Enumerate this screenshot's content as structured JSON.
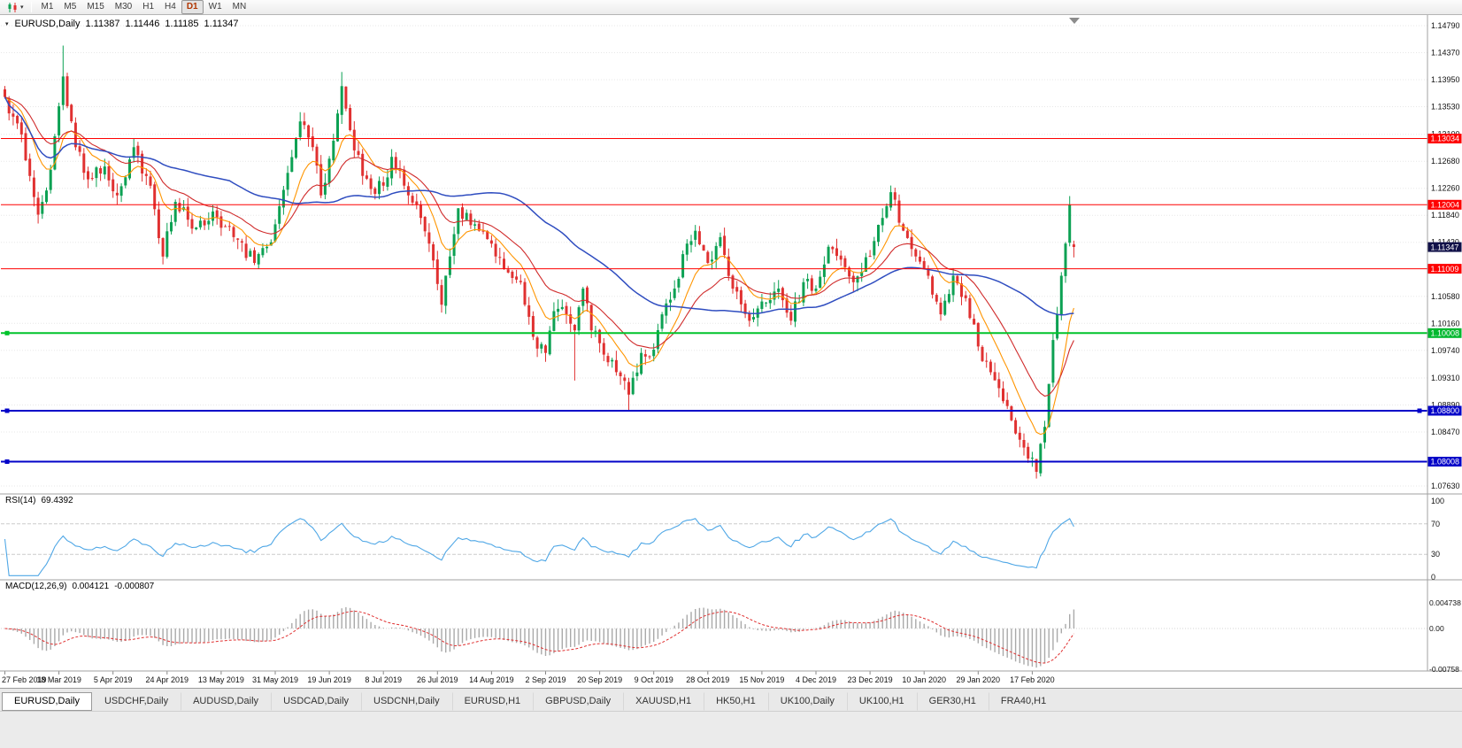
{
  "toolbar": {
    "timeframes": [
      "M1",
      "M5",
      "M15",
      "M30",
      "H1",
      "H4",
      "D1",
      "W1",
      "MN"
    ],
    "active_timeframe": "D1",
    "icons": [
      "candlestick-chart-icon",
      "dropdown-arrow-icon"
    ]
  },
  "chart": {
    "symbol_label": "EURUSD,Daily",
    "open": "1.11387",
    "high": "1.11446",
    "low": "1.11185",
    "close": "1.11347"
  },
  "price_axis": {
    "top_value": 1.1479,
    "bottom_value": 1.0763,
    "labels": [
      "1.14790",
      "1.14370",
      "1.13950",
      "1.13530",
      "1.13100",
      "1.12680",
      "1.12260",
      "1.11840",
      "1.11420",
      "1.10580",
      "1.10160",
      "1.09740",
      "1.09310",
      "1.08890",
      "1.08470",
      "1.07630"
    ]
  },
  "badges": [
    {
      "text": "1.13034",
      "value": 1.13034,
      "bg": "#fe0000",
      "type": "resistance-level"
    },
    {
      "text": "1.12004",
      "value": 1.12004,
      "bg": "#fe0000",
      "type": "resistance-level"
    },
    {
      "text": "1.11347",
      "value": 1.11347,
      "bg": "#101048",
      "type": "current-price"
    },
    {
      "text": "1.11009",
      "value": 1.11009,
      "bg": "#fe0000",
      "type": "resistance-level"
    },
    {
      "text": "1.10008",
      "value": 1.10008,
      "bg": "#00b82e",
      "type": "support-level"
    },
    {
      "text": "1.08800",
      "value": 1.088,
      "bg": "#0202c8",
      "type": "support-level"
    },
    {
      "text": "1.08008",
      "value": 1.08008,
      "bg": "#0202c8",
      "type": "support-level"
    }
  ],
  "hlines": [
    {
      "value": 1.13034,
      "color": "#fe0000",
      "width": 1,
      "handles": []
    },
    {
      "value": 1.12004,
      "color": "#fe0000",
      "width": 1,
      "handles": []
    },
    {
      "value": 1.11009,
      "color": "#fe0000",
      "width": 1,
      "handles": []
    },
    {
      "value": 1.10008,
      "color": "#00c32b",
      "width": 2,
      "handles": [
        "left"
      ]
    },
    {
      "value": 1.088,
      "color": "#0202c8",
      "width": 2,
      "handles": [
        "left",
        "right"
      ]
    },
    {
      "value": 1.08008,
      "color": "#0202c8",
      "width": 2,
      "handles": [
        "left"
      ]
    }
  ],
  "rsi_panel": {
    "name": "RSI(14)",
    "value": "69.4392",
    "axis_labels": [
      "100",
      "70",
      "30",
      "0"
    ],
    "levels": [
      70,
      30
    ],
    "color": "#4fa7e6"
  },
  "macd_panel": {
    "name": "MACD(12,26,9)",
    "main_value": "0.004121",
    "signal_value": "-0.000807",
    "axis_labels": [
      "0.004738",
      "0.00",
      "-0.00758"
    ],
    "axis_values": [
      0.004738,
      0,
      -0.00758
    ],
    "histogram_color": "#a9a9a9",
    "signal_color": "#e03030"
  },
  "date_axis": {
    "candles_per_label": 13,
    "labels": [
      "27 Feb 2019",
      "18 Mar 2019",
      "5 Apr 2019",
      "24 Apr 2019",
      "13 May 2019",
      "31 May 2019",
      "19 Jun 2019",
      "8 Jul 2019",
      "26 Jul 2019",
      "14 Aug 2019",
      "2 Sep 2019",
      "20 Sep 2019",
      "9 Oct 2019",
      "28 Oct 2019",
      "15 Nov 2019",
      "4 Dec 2019",
      "23 Dec 2019",
      "10 Jan 2020",
      "29 Jan 2020",
      "17 Feb 2020"
    ]
  },
  "tabs": [
    {
      "label": "EURUSD,Daily",
      "active": true
    },
    {
      "label": "USDCHF,Daily",
      "active": false
    },
    {
      "label": "AUDUSD,Daily",
      "active": false
    },
    {
      "label": "USDCAD,Daily",
      "active": false
    },
    {
      "label": "USDCNH,Daily",
      "active": false
    },
    {
      "label": "EURUSD,H1",
      "active": false
    },
    {
      "label": "GBPUSD,Daily",
      "active": false
    },
    {
      "label": "XAUUSD,H1",
      "active": false
    },
    {
      "label": "HK50,H1",
      "active": false
    },
    {
      "label": "UK100,Daily",
      "active": false
    },
    {
      "label": "UK100,H1",
      "active": false
    },
    {
      "label": "GER30,H1",
      "active": false
    },
    {
      "label": "FRA40,H1",
      "active": false
    }
  ],
  "chart_data": {
    "type": "candlestick",
    "symbol": "EURUSD",
    "timeframe": "Daily",
    "candle_count": 258,
    "chart_shift": true,
    "visible_price_range": [
      1.0763,
      1.1479
    ],
    "up_color": "#0ca153",
    "down_color": "#e03131",
    "last_candle": {
      "open": 1.11387,
      "high": 1.11446,
      "low": 1.11185,
      "close": 1.11347
    },
    "close_waypoints": [
      [
        0,
        1.1368
      ],
      [
        4,
        1.131
      ],
      [
        8,
        1.1185
      ],
      [
        11,
        1.1255
      ],
      [
        14,
        1.14
      ],
      [
        17,
        1.129
      ],
      [
        20,
        1.124
      ],
      [
        24,
        1.126
      ],
      [
        27,
        1.1215
      ],
      [
        31,
        1.129
      ],
      [
        35,
        1.123
      ],
      [
        38,
        1.112
      ],
      [
        41,
        1.1205
      ],
      [
        46,
        1.1165
      ],
      [
        50,
        1.119
      ],
      [
        55,
        1.115
      ],
      [
        60,
        1.111
      ],
      [
        63,
        1.1135
      ],
      [
        65,
        1.117
      ],
      [
        68,
        1.125
      ],
      [
        71,
        1.133
      ],
      [
        74,
        1.129
      ],
      [
        76,
        1.1215
      ],
      [
        79,
        1.13
      ],
      [
        81,
        1.1385
      ],
      [
        84,
        1.1285
      ],
      [
        88,
        1.1225
      ],
      [
        91,
        1.123
      ],
      [
        93,
        1.1275
      ],
      [
        97,
        1.1215
      ],
      [
        100,
        1.118
      ],
      [
        102,
        1.114
      ],
      [
        105,
        1.1045
      ],
      [
        107,
        1.112
      ],
      [
        109,
        1.1195
      ],
      [
        113,
        1.117
      ],
      [
        117,
        1.114
      ],
      [
        121,
        1.1095
      ],
      [
        124,
        1.108
      ],
      [
        127,
        1.0995
      ],
      [
        130,
        1.097
      ],
      [
        132,
        1.1035
      ],
      [
        135,
        1.103
      ],
      [
        137,
        1.1005
      ],
      [
        139,
        1.107
      ],
      [
        141,
        1.1005
      ],
      [
        143,
        1.0985
      ],
      [
        147,
        1.094
      ],
      [
        150,
        1.0905
      ],
      [
        153,
        1.097
      ],
      [
        156,
        1.0975
      ],
      [
        158,
        1.103
      ],
      [
        161,
        1.107
      ],
      [
        164,
        1.114
      ],
      [
        166,
        1.116
      ],
      [
        169,
        1.111
      ],
      [
        172,
        1.115
      ],
      [
        175,
        1.107
      ],
      [
        179,
        1.102
      ],
      [
        182,
        1.105
      ],
      [
        186,
        1.107
      ],
      [
        189,
        1.102
      ],
      [
        192,
        1.108
      ],
      [
        195,
        1.107
      ],
      [
        198,
        1.1135
      ],
      [
        201,
        1.1115
      ],
      [
        204,
        1.108
      ],
      [
        208,
        1.112
      ],
      [
        211,
        1.118
      ],
      [
        213,
        1.122
      ],
      [
        216,
        1.116
      ],
      [
        219,
        1.112
      ],
      [
        222,
        1.109
      ],
      [
        225,
        1.103
      ],
      [
        228,
        1.109
      ],
      [
        231,
        1.1055
      ],
      [
        234,
        1.098
      ],
      [
        237,
        1.094
      ],
      [
        240,
        1.0895
      ],
      [
        244,
        1.0835
      ],
      [
        248,
        1.0785
      ],
      [
        250,
        1.0855
      ],
      [
        252,
        1.099
      ],
      [
        254,
        1.109
      ],
      [
        255,
        1.114
      ],
      [
        256,
        1.12
      ],
      [
        257,
        1.11347
      ]
    ],
    "wick_extremes": [
      {
        "i": 14,
        "h": 1.1448
      },
      {
        "i": 81,
        "h": 1.1407
      },
      {
        "i": 137,
        "l": 1.0927
      },
      {
        "i": 150,
        "l": 1.0879
      },
      {
        "i": 248,
        "l": 1.0778
      },
      {
        "i": 256,
        "h": 1.1214
      }
    ],
    "moving_averages": [
      {
        "type": "EMA",
        "period": 10,
        "color": "#ff9500",
        "width": 1.1
      },
      {
        "type": "EMA",
        "period": 22,
        "color": "#d02b2b",
        "width": 1.1
      },
      {
        "type": "SMA",
        "period": 55,
        "color": "#2f4dc0",
        "width": 1.5
      }
    ],
    "indicators": [
      {
        "name": "RSI",
        "period": 14,
        "last": 69.4392
      },
      {
        "name": "MACD",
        "fast": 12,
        "slow": 26,
        "signal": 9,
        "last_main": 0.004121,
        "last_signal": -0.000807
      }
    ]
  }
}
